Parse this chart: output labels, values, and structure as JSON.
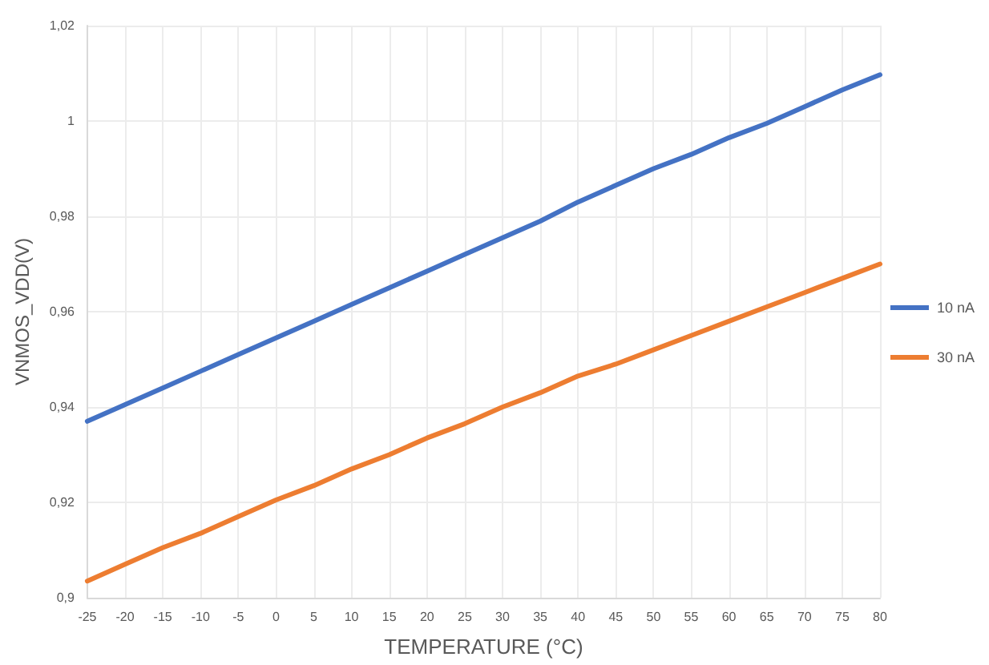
{
  "chart_data": {
    "type": "line",
    "xlabel": "TEMPERATURE (°C)",
    "ylabel": "VNMOS_VDD(V)",
    "categories": [
      "-25",
      "-20",
      "-15",
      "-10",
      "-5",
      "0",
      "5",
      "10",
      "15",
      "20",
      "25",
      "30",
      "35",
      "40",
      "45",
      "50",
      "55",
      "60",
      "65",
      "70",
      "75",
      "80"
    ],
    "series": [
      {
        "name": "10 nA",
        "color": "#4472c4",
        "values": [
          0.937,
          0.9405,
          0.944,
          0.9475,
          0.951,
          0.9545,
          0.958,
          0.9615,
          0.965,
          0.9685,
          0.972,
          0.9755,
          0.979,
          0.983,
          0.9865,
          0.99,
          0.993,
          0.9965,
          0.9995,
          1.003,
          1.0065,
          1.0097
        ]
      },
      {
        "name": "30 nA",
        "color": "#ed7d31",
        "values": [
          0.9035,
          0.907,
          0.9105,
          0.9135,
          0.917,
          0.9205,
          0.9235,
          0.927,
          0.93,
          0.9335,
          0.9365,
          0.94,
          0.943,
          0.9465,
          0.949,
          0.952,
          0.955,
          0.958,
          0.961,
          0.964,
          0.967,
          0.97
        ]
      }
    ],
    "ylim": [
      0.9,
      1.02
    ],
    "yticks": [
      {
        "value": 0.9,
        "label": "0,9"
      },
      {
        "value": 0.92,
        "label": "0,92"
      },
      {
        "value": 0.94,
        "label": "0,94"
      },
      {
        "value": 0.96,
        "label": "0,96"
      },
      {
        "value": 0.98,
        "label": "0,98"
      },
      {
        "value": 1,
        "label": "1"
      },
      {
        "value": 1.02,
        "label": "1,02"
      }
    ],
    "grid": true,
    "legend": "right",
    "marker": "none",
    "line_style": "solid"
  }
}
